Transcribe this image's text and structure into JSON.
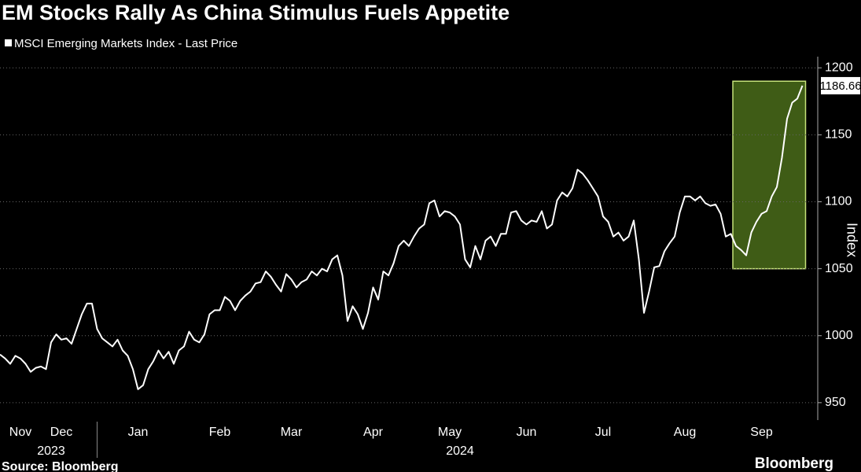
{
  "chart_data": {
    "type": "line",
    "title": "EM Stocks Rally As China Stimulus Fuels Appetite",
    "y_axis_label": "Index",
    "source": "Source: Bloomberg",
    "brand": "Bloomberg",
    "series": [
      {
        "name": "MSCI Emerging Markets Index - Last Price",
        "color": "#ffffff",
        "values": [
          986,
          983,
          979,
          985,
          983,
          979,
          973,
          976,
          977,
          975,
          995,
          1001,
          997,
          998,
          994,
          1005,
          1016,
          1024,
          1024,
          1005,
          998,
          995,
          992,
          997,
          989,
          985,
          975,
          960,
          963,
          975,
          981,
          989,
          983,
          988,
          979,
          989,
          992,
          1003,
          997,
          995,
          1001,
          1016,
          1019,
          1019,
          1029,
          1026,
          1019,
          1026,
          1030,
          1033,
          1039,
          1040,
          1048,
          1044,
          1038,
          1033,
          1046,
          1042,
          1036,
          1040,
          1042,
          1048,
          1045,
          1050,
          1048,
          1057,
          1060,
          1045,
          1011,
          1022,
          1016,
          1005,
          1017,
          1036,
          1027,
          1048,
          1045,
          1054,
          1067,
          1071,
          1067,
          1074,
          1080,
          1083,
          1099,
          1101,
          1089,
          1093,
          1092,
          1089,
          1083,
          1057,
          1051,
          1067,
          1057,
          1071,
          1074,
          1067,
          1076,
          1076,
          1092,
          1093,
          1086,
          1083,
          1086,
          1085,
          1093,
          1080,
          1083,
          1101,
          1107,
          1104,
          1110,
          1124,
          1121,
          1116,
          1110,
          1104,
          1089,
          1085,
          1074,
          1077,
          1071,
          1074,
          1086,
          1057,
          1017,
          1033,
          1051,
          1052,
          1063,
          1069,
          1074,
          1092,
          1104,
          1104,
          1101,
          1104,
          1099,
          1097,
          1098,
          1091,
          1074,
          1076,
          1067,
          1064,
          1060,
          1077,
          1085,
          1091,
          1093,
          1104,
          1111,
          1133,
          1162,
          1174,
          1177,
          1186.66
        ]
      }
    ],
    "xlim": [
      0,
      160
    ],
    "xticks": [
      {
        "value": 4,
        "label": "Nov"
      },
      {
        "value": 12,
        "label": "Dec"
      },
      {
        "value": 27,
        "label": "Jan"
      },
      {
        "value": 43,
        "label": "Feb"
      },
      {
        "value": 57,
        "label": "Mar"
      },
      {
        "value": 73,
        "label": "Apr"
      },
      {
        "value": 88,
        "label": "May"
      },
      {
        "value": 103,
        "label": "Jun"
      },
      {
        "value": 118,
        "label": "Jul"
      },
      {
        "value": 134,
        "label": "Aug"
      },
      {
        "value": 149,
        "label": "Sep"
      }
    ],
    "year_labels": [
      {
        "value": 10,
        "label": "2023"
      },
      {
        "value": 90,
        "label": "2024"
      }
    ],
    "year_divider": 19,
    "ylim": [
      937,
      1206
    ],
    "yticks": [
      950,
      1000,
      1050,
      1100,
      1150,
      1200
    ],
    "grid": true,
    "highlight": {
      "x": [
        144,
        157
      ],
      "y": [
        1050,
        1190
      ],
      "color": "#3f5c16",
      "edge": "#c6e27a"
    }
  }
}
